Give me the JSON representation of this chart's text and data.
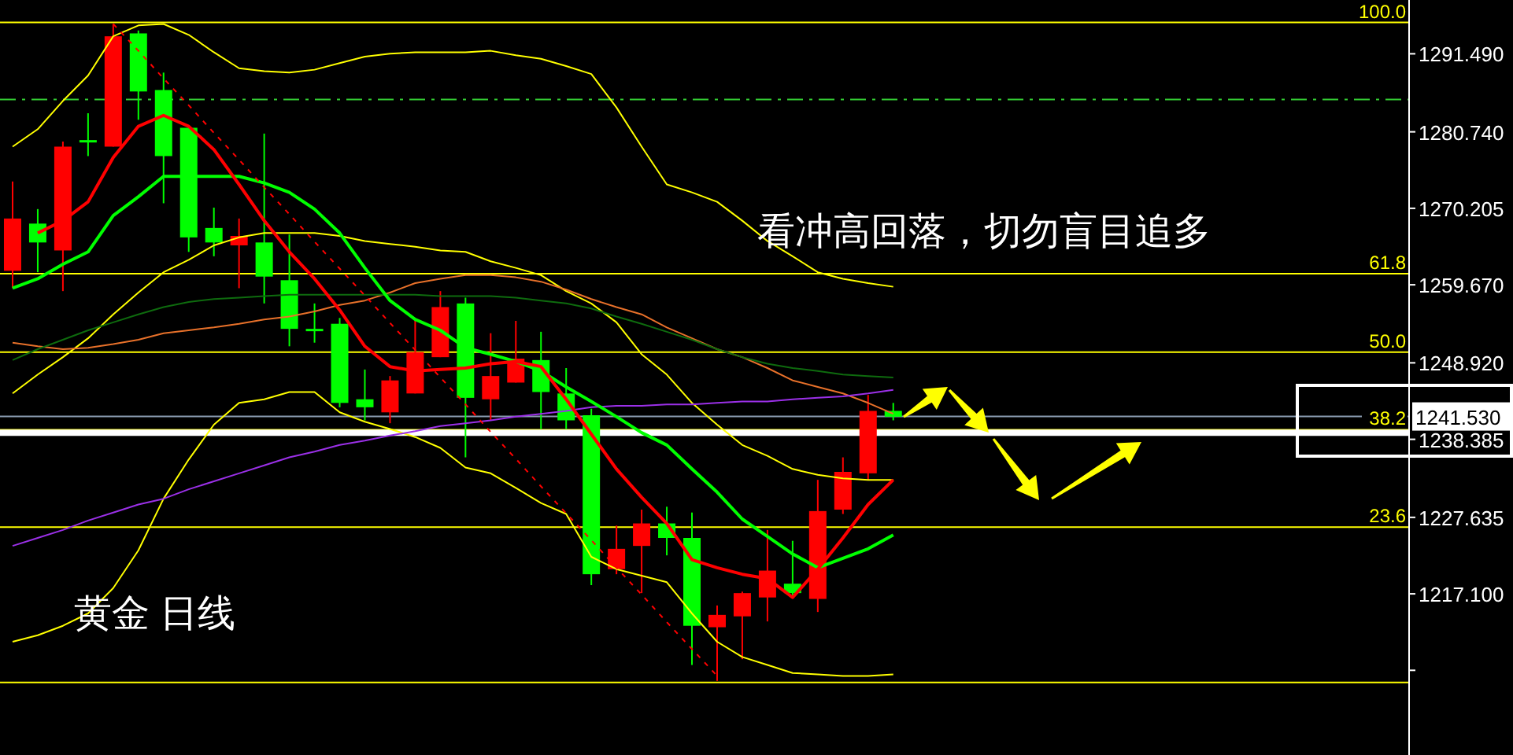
{
  "chart_data": {
    "type": "candlestick",
    "annotations": [
      "看冲高回落，切勿盲目追多",
      "黄金 日线",
      {
        "text": "100.0",
        "y": 1295.8
      },
      {
        "text": "61.8",
        "y": 1261.2
      },
      {
        "text": "50.0",
        "y": 1250.4
      },
      {
        "text": "38.2",
        "y": 1239.7
      },
      {
        "text": "23.6",
        "y": 1226.3
      }
    ],
    "categories": [
      null,
      null,
      null,
      null,
      null,
      null,
      null,
      null,
      null,
      null,
      null,
      null,
      null,
      null,
      null,
      null,
      null,
      null,
      null,
      null,
      null,
      null,
      null,
      null,
      null,
      null,
      null,
      null,
      null,
      null,
      null,
      null,
      null,
      null,
      null,
      null,
      null,
      null,
      null,
      null,
      null,
      null,
      null,
      null,
      null,
      null,
      null,
      null,
      null,
      null,
      null,
      null,
      null,
      null,
      null,
      null
    ],
    "ohlc": [
      [
        1261.6,
        1273.9,
        1259.2,
        1268.8
      ],
      [
        1268.1,
        1270.1,
        1261.4,
        1265.5
      ],
      [
        1264.4,
        1279.4,
        1258.8,
        1278.7
      ],
      [
        1279.6,
        1283.3,
        1277.4,
        1279.6
      ],
      [
        1278.7,
        1295.6,
        1278.7,
        1293.9
      ],
      [
        1294.3,
        1294.7,
        1282.4,
        1286.3
      ],
      [
        1286.5,
        1288.9,
        1270.9,
        1277.4
      ],
      [
        1281.3,
        1281.3,
        1264.2,
        1266.2
      ],
      [
        1267.5,
        1270.3,
        1263.6,
        1265.5
      ],
      [
        1265.1,
        1268.8,
        1259.2,
        1266.4
      ],
      [
        1265.5,
        1280.5,
        1257.1,
        1260.8
      ],
      [
        1260.3,
        1266.6,
        1251.2,
        1253.6
      ],
      [
        1253.6,
        1257.1,
        1251.7,
        1253.6
      ],
      [
        1254.3,
        1255.1,
        1242.8,
        1243.4
      ],
      [
        1243.9,
        1248.0,
        1241.0,
        1242.8
      ],
      [
        1242.1,
        1247.1,
        1240.6,
        1246.5
      ],
      [
        1244.7,
        1254.7,
        1244.7,
        1250.4
      ],
      [
        1249.7,
        1258.8,
        1249.7,
        1256.6
      ],
      [
        1257.1,
        1257.9,
        1235.9,
        1244.1
      ],
      [
        1243.9,
        1253.0,
        1241.0,
        1247.1
      ],
      [
        1246.2,
        1254.7,
        1246.2,
        1249.5
      ],
      [
        1249.3,
        1253.2,
        1239.8,
        1244.9
      ],
      [
        1244.7,
        1248.2,
        1239.8,
        1241.0
      ],
      [
        1241.7,
        1242.6,
        1218.3,
        1219.8
      ],
      [
        1220.5,
        1226.5,
        1219.8,
        1223.3
      ],
      [
        1223.7,
        1228.7,
        1217.2,
        1226.8
      ],
      [
        1226.8,
        1229.1,
        1222.4,
        1224.8
      ],
      [
        1224.8,
        1228.3,
        1207.3,
        1212.7
      ],
      [
        1212.5,
        1215.5,
        1205.1,
        1214.2
      ],
      [
        1214.0,
        1217.4,
        1208.1,
        1217.2
      ],
      [
        1216.6,
        1225.9,
        1213.3,
        1220.3
      ],
      [
        1218.5,
        1224.4,
        1216.6,
        1217.2
      ],
      [
        1216.4,
        1232.8,
        1214.6,
        1228.5
      ],
      [
        1228.7,
        1235.9,
        1228.1,
        1233.9
      ],
      [
        1233.7,
        1244.5,
        1232.8,
        1242.3
      ],
      [
        1242.3,
        1243.4,
        1241.0,
        1241.5
      ],
      null,
      null,
      null,
      null,
      null,
      null,
      null,
      null,
      null,
      null,
      null,
      null,
      null,
      null,
      null,
      null,
      null,
      null,
      null,
      null
    ],
    "colors": [
      "#ff0000",
      "#00ff00",
      "#ff0000",
      "#00ff00",
      "#ff0000",
      "#00ff00",
      "#00ff00",
      "#00ff00",
      "#00ff00",
      "#ff0000",
      "#00ff00",
      "#00ff00",
      "#00ff00",
      "#00ff00",
      "#00ff00",
      "#ff0000",
      "#ff0000",
      "#ff0000",
      "#00ff00",
      "#ff0000",
      "#ff0000",
      "#00ff00",
      "#00ff00",
      "#00ff00",
      "#ff0000",
      "#ff0000",
      "#00ff00",
      "#00ff00",
      "#ff0000",
      "#ff0000",
      "#ff0000",
      "#00ff00",
      "#ff0000",
      "#ff0000",
      "#ff0000",
      "#00ff00",
      null,
      null,
      null,
      null,
      null,
      null,
      null,
      null,
      null,
      null,
      null,
      null,
      null,
      null,
      null,
      null,
      null,
      null,
      null,
      null
    ],
    "series": [
      {
        "type": "line",
        "color": "#ffff00",
        "values": [
          1278.7,
          1281.1,
          1285.0,
          1288.5,
          1293.9,
          1295.4,
          1295.6,
          1294.1,
          1291.7,
          1289.5,
          1289.1,
          1288.9,
          1289.3,
          1290.2,
          1291.1,
          1291.5,
          1291.7,
          1291.7,
          1291.7,
          1291.9,
          1291.3,
          1290.8,
          1289.8,
          1288.7,
          1284.1,
          1278.7,
          1273.5,
          1272.4,
          1271.1,
          1268.5,
          1265.7,
          1263.6,
          1261.4,
          1260.5,
          1259.9,
          1259.4,
          null,
          null,
          null,
          null,
          null,
          null,
          null,
          null,
          null,
          null,
          null,
          null,
          null,
          null,
          null,
          null,
          null,
          null,
          null,
          null
        ]
      },
      {
        "type": "line",
        "color": "#ffff00",
        "values": [
          1210.5,
          1211.4,
          1212.7,
          1214.4,
          1217.9,
          1223.1,
          1230.2,
          1235.6,
          1240.4,
          1243.4,
          1243.9,
          1244.9,
          1244.9,
          1242.1,
          1240.8,
          1239.8,
          1238.7,
          1237.2,
          1234.5,
          1233.7,
          1231.7,
          1229.6,
          1228.1,
          1222.2,
          1220.5,
          1219.6,
          1218.7,
          1214.4,
          1210.5,
          1208.4,
          1207.3,
          1206.2,
          1206.0,
          1205.8,
          1205.8,
          1206.0,
          null,
          null,
          null,
          null,
          null,
          null,
          null,
          null,
          null,
          null,
          null,
          null,
          null,
          null,
          null,
          null,
          null,
          null,
          null,
          null
        ]
      },
      {
        "type": "line",
        "color": "#ffff00",
        "values": [
          1244.7,
          1247.3,
          1249.7,
          1252.3,
          1255.6,
          1258.6,
          1261.4,
          1263.1,
          1265.1,
          1266.2,
          1266.8,
          1266.8,
          1266.8,
          1266.4,
          1265.7,
          1265.3,
          1264.9,
          1264.4,
          1264.2,
          1262.9,
          1262.0,
          1261.0,
          1258.8,
          1257.1,
          1254.5,
          1250.1,
          1247.3,
          1243.4,
          1240.4,
          1237.6,
          1236.1,
          1234.3,
          1233.5,
          1233.0,
          1232.8,
          1232.8,
          null,
          null,
          null,
          null,
          null,
          null,
          null,
          null,
          null,
          null,
          null,
          null,
          null,
          null,
          null,
          null,
          null,
          null,
          null,
          null
        ]
      },
      {
        "type": "line",
        "color": "#e8712a",
        "values": [
          1251.7,
          1251.2,
          1250.8,
          1251.0,
          1251.5,
          1252.1,
          1253.0,
          1253.4,
          1253.8,
          1254.3,
          1254.9,
          1255.3,
          1256.0,
          1256.9,
          1257.5,
          1258.6,
          1259.9,
          1260.5,
          1261.0,
          1261.0,
          1260.7,
          1260.1,
          1259.0,
          1257.7,
          1256.6,
          1255.6,
          1253.8,
          1252.3,
          1250.8,
          1249.7,
          1248.2,
          1246.5,
          1245.6,
          1244.7,
          1243.4,
          1241.9,
          null,
          null,
          null,
          null,
          null,
          null,
          null,
          null,
          null,
          null,
          null,
          null,
          null,
          null,
          null,
          null,
          null,
          null,
          null,
          null
        ]
      },
      {
        "type": "line",
        "color": "#0e6b0e",
        "values": [
          1249.3,
          1250.8,
          1252.1,
          1253.4,
          1254.5,
          1255.6,
          1256.6,
          1257.3,
          1257.7,
          1257.9,
          1258.1,
          1258.3,
          1258.3,
          1258.3,
          1258.3,
          1258.3,
          1258.3,
          1258.1,
          1258.1,
          1258.1,
          1257.9,
          1257.5,
          1257.1,
          1256.4,
          1255.3,
          1254.3,
          1253.2,
          1252.1,
          1250.8,
          1249.7,
          1248.8,
          1248.2,
          1247.8,
          1247.3,
          1247.1,
          1246.9,
          null,
          null,
          null,
          null,
          null,
          null,
          null,
          null,
          null,
          null,
          null,
          null,
          null,
          null,
          null,
          null,
          null,
          null,
          null,
          null
        ]
      },
      {
        "type": "line",
        "color": "#9b30e8",
        "values": [
          1223.7,
          1224.8,
          1225.9,
          1227.2,
          1228.3,
          1229.4,
          1230.2,
          1231.5,
          1232.6,
          1233.7,
          1234.8,
          1235.9,
          1236.7,
          1237.6,
          1238.2,
          1238.9,
          1239.5,
          1240.2,
          1240.6,
          1241.0,
          1241.5,
          1241.9,
          1242.3,
          1242.8,
          1243.0,
          1243.0,
          1243.2,
          1243.2,
          1243.4,
          1243.6,
          1243.6,
          1243.9,
          1244.1,
          1244.3,
          1244.7,
          1245.2,
          null,
          null,
          null,
          null,
          null,
          null,
          null,
          null,
          null,
          null,
          null,
          null,
          null,
          null,
          null,
          null,
          null,
          null,
          null,
          null
        ]
      },
      {
        "type": "line",
        "color": "#00ff00",
        "values": [
          1259.2,
          1260.5,
          1262.5,
          1264.2,
          1269.2,
          1271.8,
          1274.6,
          1274.6,
          1274.6,
          1274.6,
          1273.7,
          1272.4,
          1270.1,
          1266.8,
          1262.0,
          1257.5,
          1254.9,
          1253.4,
          1251.0,
          1250.1,
          1249.1,
          1247.8,
          1245.6,
          1243.6,
          1241.5,
          1239.3,
          1237.6,
          1234.3,
          1231.1,
          1227.4,
          1225.0,
          1222.6,
          1220.7,
          1222.0,
          1223.3,
          1225.2,
          null,
          null,
          null,
          null,
          null,
          null,
          null,
          null,
          null,
          null,
          null,
          null,
          null,
          null,
          null,
          null,
          null,
          null,
          null,
          null
        ]
      },
      {
        "type": "line",
        "color": "#ff0000",
        "values": [
          null,
          1266.8,
          1268.5,
          1271.1,
          1277.2,
          1281.5,
          1283.0,
          1281.5,
          1278.3,
          1273.5,
          1268.5,
          1264.2,
          1260.5,
          1256.2,
          1251.2,
          1248.4,
          1247.8,
          1248.0,
          1248.2,
          1248.8,
          1249.1,
          1248.4,
          1243.9,
          1239.1,
          1234.3,
          1230.4,
          1226.8,
          1221.8,
          1220.7,
          1219.8,
          1219.2,
          1216.6,
          1220.5,
          1224.8,
          1229.4,
          1232.8,
          null,
          null,
          null,
          null,
          null,
          null,
          null,
          null,
          null,
          null,
          null,
          null,
          null,
          null,
          null,
          null,
          null,
          null,
          null,
          null
        ]
      },
      {
        "type": "line",
        "color": "#ff0000",
        "line_style": "dotted",
        "values": [
          null,
          null,
          null,
          null,
          1295.6,
          1291.9,
          1288.1,
          1284.4,
          1280.6,
          1276.9,
          1273.1,
          1269.4,
          1265.6,
          1261.9,
          1258.2,
          1254.4,
          1250.7,
          1246.9,
          1243.2,
          1239.4,
          1235.7,
          1231.9,
          1228.2,
          1224.5,
          1220.7,
          1217.0,
          1213.2,
          1209.5,
          1205.8,
          null,
          null,
          null,
          null,
          null,
          null,
          null,
          null,
          null,
          null,
          null,
          null,
          null,
          null,
          null,
          null,
          null,
          null,
          null,
          null,
          null,
          null,
          null,
          null,
          null,
          null,
          null
        ]
      }
    ],
    "ylim": [
      1194.9,
      1298.9
    ],
    "yticks": [
      {
        "value": 1291.49,
        "label": "1291.490"
      },
      {
        "value": 1280.74,
        "label": "1280.740"
      },
      1270.205,
      {
        "value": 1259.67,
        "label": "1259.670"
      },
      {
        "value": 1248.92,
        "label": "1248.920"
      },
      1238.385,
      1227.635,
      {
        "value": 1217.1,
        "label": "1217.100"
      },
      {
        "value": 1206.565,
        "label": null
      }
    ],
    "tick_labels": "y",
    "ref_lines": [
      {
        "axis": "y",
        "value": 1295.8,
        "color": "#ffff00"
      },
      {
        "axis": "y",
        "value": 1261.2,
        "color": "#ffff00"
      },
      {
        "axis": "y",
        "value": 1250.4,
        "color": "#ffff00"
      },
      {
        "axis": "y",
        "value": 1239.7,
        "color": "#ffff00"
      },
      {
        "axis": "y",
        "value": 1226.3,
        "color": "#ffff00"
      },
      {
        "axis": "y",
        "value": 1204.9,
        "color": "#ffff00"
      },
      {
        "axis": "y",
        "value": 1285.2,
        "color": "#33cc33",
        "line_style": "dashed"
      },
      {
        "axis": "y",
        "value": 1239.3,
        "color": "#ffffff"
      },
      {
        "axis": "y",
        "value": 1241.53,
        "label": "1241.530",
        "color": "#8a9bb0"
      }
    ]
  }
}
